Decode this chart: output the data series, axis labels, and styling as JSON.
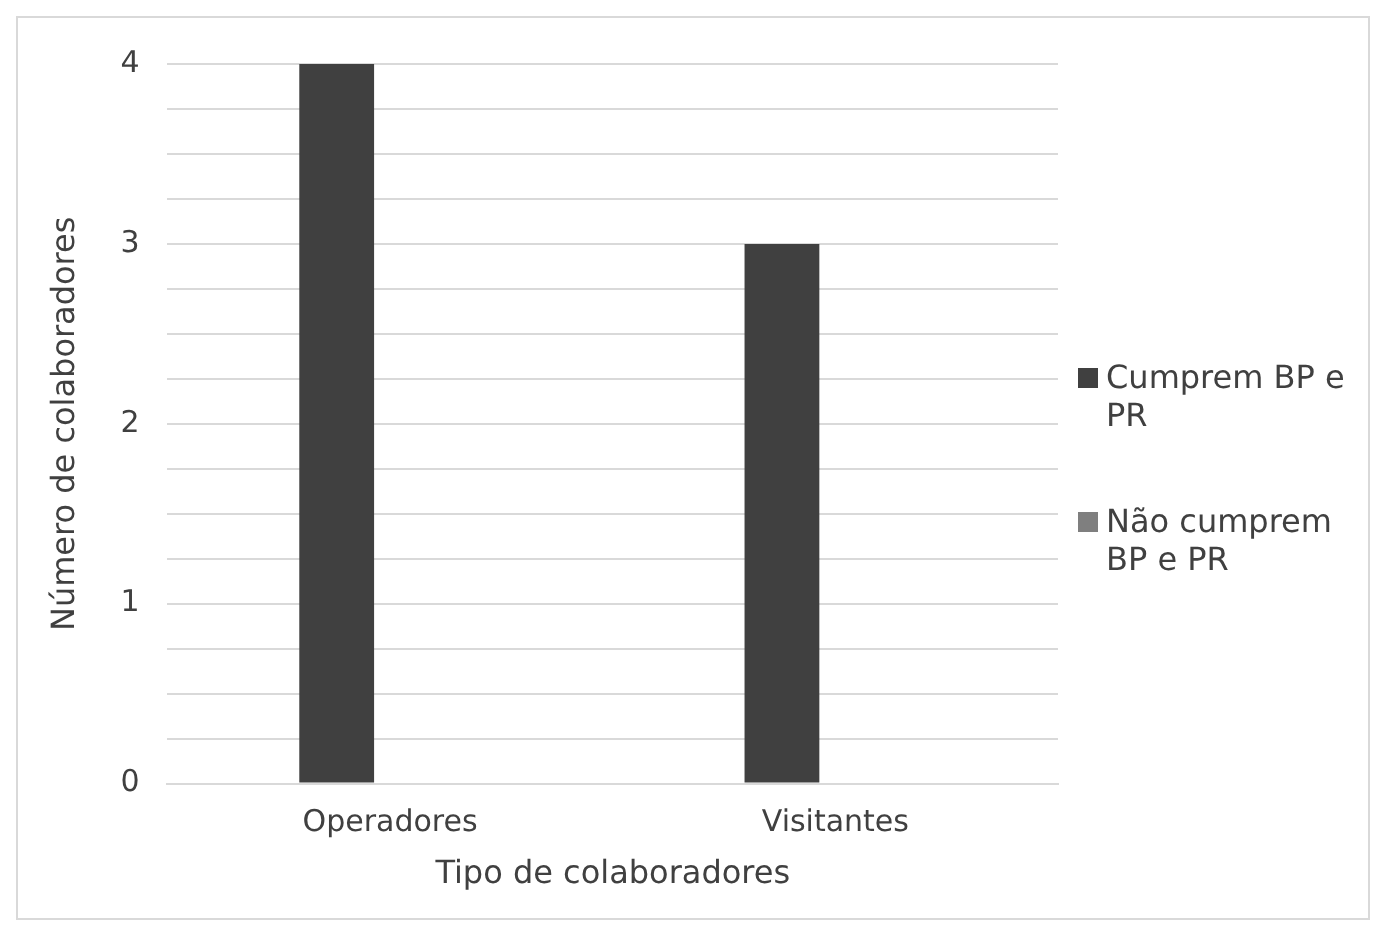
{
  "chart_data": {
    "type": "bar",
    "xlabel": "Tipo de colaboradores",
    "ylabel": "Número de colaboradores",
    "categories": [
      "Operadores",
      "Visitantes"
    ],
    "series": [
      {
        "name": "Cumprem BP e PR",
        "color": "#404040",
        "values": [
          4,
          3
        ]
      },
      {
        "name": "Não cumprem BP e PR",
        "color": "#7f7f7f",
        "values": [
          0,
          0
        ]
      }
    ],
    "ylim": [
      0,
      4
    ],
    "yticks": [
      0,
      {
        "value": 0.25,
        "label": null
      },
      {
        "value": 0.5,
        "label": null
      },
      {
        "value": 0.75,
        "label": null
      },
      1,
      {
        "value": 1.25,
        "label": null
      },
      {
        "value": 1.5,
        "label": null
      },
      {
        "value": 1.75,
        "label": null
      },
      2,
      {
        "value": 2.25,
        "label": null
      },
      {
        "value": 2.5,
        "label": null
      },
      {
        "value": 2.75,
        "label": null
      },
      3,
      {
        "value": 3.25,
        "label": null
      },
      {
        "value": 3.5,
        "label": null
      },
      {
        "value": 3.75,
        "label": null
      },
      4
    ],
    "grid": "y",
    "legend": "right"
  }
}
